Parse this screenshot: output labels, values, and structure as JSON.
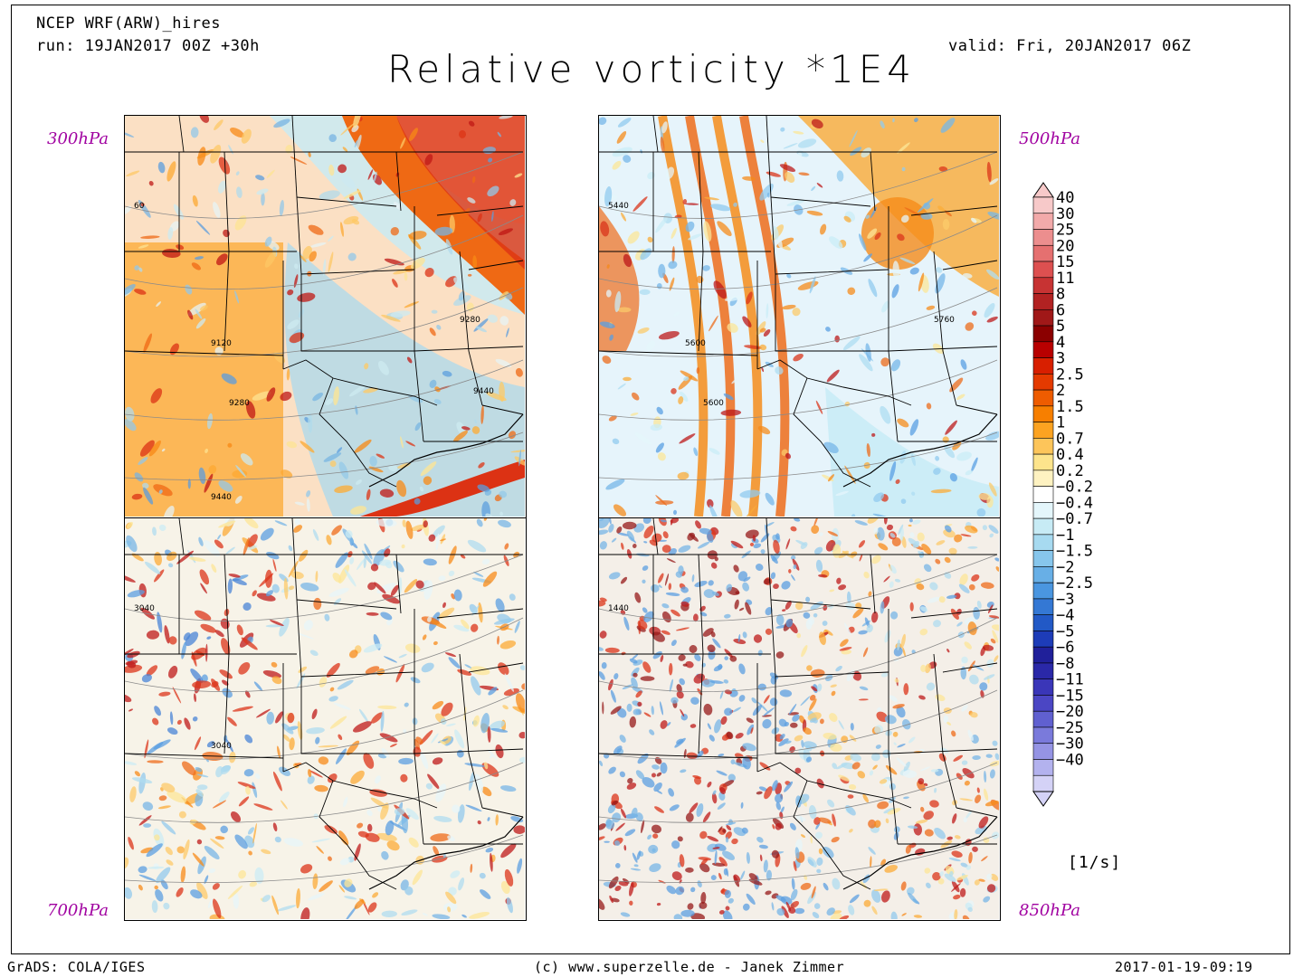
{
  "header": {
    "model": "NCEP WRF(ARW)_hires",
    "run": "run: 19JAN2017 00Z +30h",
    "valid": "valid: Fri, 20JAN2017 06Z",
    "title": "Relative vorticity *1E4"
  },
  "panels": [
    {
      "id": "300",
      "level": "300hPa",
      "contour_labels": [
        "60",
        "9120",
        "9280",
        "9280",
        "9440",
        "9440"
      ],
      "base": "#fbe0c4",
      "style": "jet"
    },
    {
      "id": "500",
      "level": "500hPa",
      "contour_labels": [
        "5440",
        "5600",
        "5600",
        "5760"
      ],
      "base": "#e6f4fb",
      "style": "trough"
    },
    {
      "id": "700",
      "level": "700hPa",
      "contour_labels": [
        "3040",
        "3040"
      ],
      "base": "#f7f3e8",
      "style": "mixed"
    },
    {
      "id": "850",
      "level": "850hPa",
      "contour_labels": [
        "1440"
      ],
      "base": "#f4efe8",
      "style": "noisy"
    }
  ],
  "colorbar": {
    "labels": [
      "40",
      "30",
      "25",
      "20",
      "15",
      "11",
      "8",
      "6",
      "5",
      "4",
      "3",
      "2.5",
      "2",
      "1.5",
      "1",
      "0.7",
      "0.4",
      "0.2",
      "−0.2",
      "−0.4",
      "−0.7",
      "−1",
      "−1.5",
      "−2",
      "−2.5",
      "−3",
      "−4",
      "−5",
      "−6",
      "−8",
      "−11",
      "−15",
      "−20",
      "−25",
      "−30",
      "−40"
    ],
    "colors": [
      "#f7c9c9",
      "#f2aaaa",
      "#ec8e8e",
      "#e57070",
      "#dd5050",
      "#c73333",
      "#b22222",
      "#a01818",
      "#8b0000",
      "#b80000",
      "#d81f00",
      "#e43a00",
      "#ee5c00",
      "#f77f00",
      "#fca321",
      "#fdc55a",
      "#fde48c",
      "#fef2c1",
      "#ffffff",
      "#e4f6fb",
      "#c7ebf5",
      "#a7daf0",
      "#87c6ec",
      "#68afe6",
      "#4a96e0",
      "#3478d4",
      "#2259c6",
      "#1d3cb8",
      "#20209a",
      "#2a28a8",
      "#3a36b8",
      "#4b46c4",
      "#6060d0",
      "#7a7adb",
      "#9594e4",
      "#b3b2ee",
      "#d4d2f6"
    ],
    "units": "[1/s]"
  },
  "footer": {
    "left": "GrADS: COLA/IGES",
    "center": "(c) www.superzelle.de - Janek Zimmer",
    "right": "2017-01-19-09:19"
  }
}
